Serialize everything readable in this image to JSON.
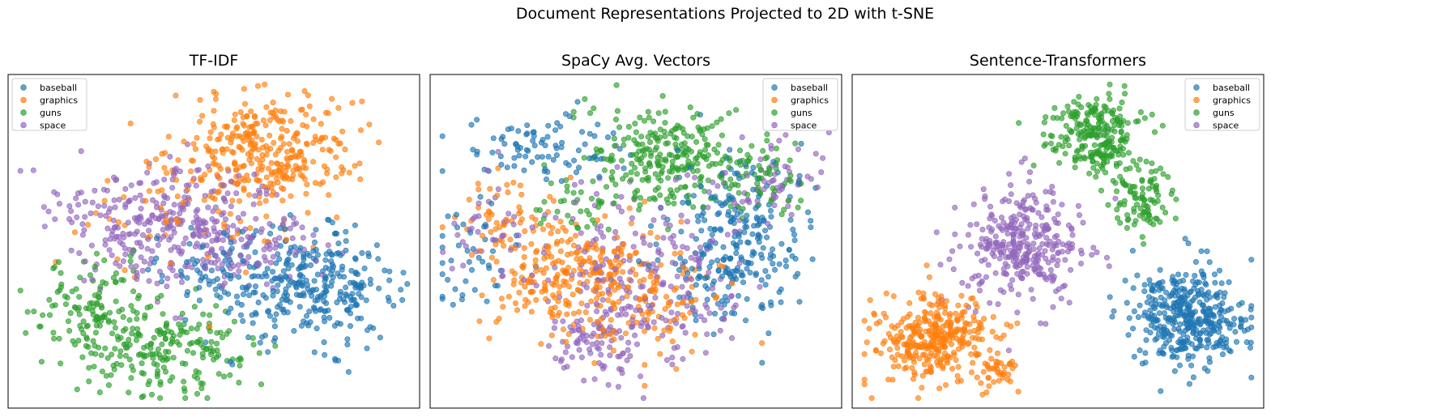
{
  "figure": {
    "suptitle": "Document Representations Projected to 2D with t-SNE"
  },
  "colors": {
    "baseball": "#1f77b4",
    "graphics": "#ff7f0e",
    "guns": "#2ca02c",
    "space": "#9467bd"
  },
  "chart_data": [
    {
      "type": "scatter",
      "title": "TF-IDF",
      "xlabel": "",
      "ylabel": "",
      "axes_ticks": "hidden",
      "grid": false,
      "legend_placement": "top-left",
      "point_alpha": 0.65,
      "series": [
        {
          "name": "baseball",
          "color": "#1f77b4",
          "clusters": [
            {
              "cx": 0.74,
              "cy": 0.36,
              "sx": 0.1,
              "sy": 0.08,
              "n": 300
            },
            {
              "cx": 0.52,
              "cy": 0.42,
              "sx": 0.1,
              "sy": 0.06,
              "n": 70
            }
          ]
        },
        {
          "name": "graphics",
          "color": "#ff7f0e",
          "clusters": [
            {
              "cx": 0.62,
              "cy": 0.77,
              "sx": 0.11,
              "sy": 0.09,
              "n": 330
            },
            {
              "cx": 0.45,
              "cy": 0.58,
              "sx": 0.15,
              "sy": 0.1,
              "n": 50
            }
          ]
        },
        {
          "name": "guns",
          "color": "#2ca02c",
          "clusters": [
            {
              "cx": 0.4,
              "cy": 0.17,
              "sx": 0.1,
              "sy": 0.07,
              "n": 190
            },
            {
              "cx": 0.22,
              "cy": 0.29,
              "sx": 0.08,
              "sy": 0.07,
              "n": 130
            }
          ]
        },
        {
          "name": "space",
          "color": "#9467bd",
          "clusters": [
            {
              "cx": 0.38,
              "cy": 0.56,
              "sx": 0.14,
              "sy": 0.09,
              "n": 300
            },
            {
              "cx": 0.58,
              "cy": 0.48,
              "sx": 0.12,
              "sy": 0.08,
              "n": 90
            }
          ]
        }
      ]
    },
    {
      "type": "scatter",
      "title": "SpaCy Avg. Vectors",
      "xlabel": "",
      "ylabel": "",
      "axes_ticks": "hidden",
      "grid": false,
      "legend_placement": "top-right",
      "point_alpha": 0.65,
      "series": [
        {
          "name": "baseball",
          "color": "#1f77b4",
          "clusters": [
            {
              "cx": 0.74,
              "cy": 0.5,
              "sx": 0.08,
              "sy": 0.12,
              "n": 260
            },
            {
              "cx": 0.27,
              "cy": 0.78,
              "sx": 0.1,
              "sy": 0.06,
              "n": 90
            },
            {
              "cx": 0.1,
              "cy": 0.45,
              "sx": 0.05,
              "sy": 0.08,
              "n": 40
            }
          ]
        },
        {
          "name": "graphics",
          "color": "#ff7f0e",
          "clusters": [
            {
              "cx": 0.35,
              "cy": 0.4,
              "sx": 0.1,
              "sy": 0.09,
              "n": 260
            },
            {
              "cx": 0.55,
              "cy": 0.32,
              "sx": 0.08,
              "sy": 0.09,
              "n": 90
            },
            {
              "cx": 0.18,
              "cy": 0.58,
              "sx": 0.06,
              "sy": 0.06,
              "n": 40
            }
          ]
        },
        {
          "name": "guns",
          "color": "#2ca02c",
          "clusters": [
            {
              "cx": 0.57,
              "cy": 0.74,
              "sx": 0.09,
              "sy": 0.08,
              "n": 260
            },
            {
              "cx": 0.8,
              "cy": 0.69,
              "sx": 0.05,
              "sy": 0.06,
              "n": 60
            },
            {
              "cx": 0.34,
              "cy": 0.6,
              "sx": 0.06,
              "sy": 0.06,
              "n": 30
            }
          ]
        },
        {
          "name": "space",
          "color": "#9467bd",
          "clusters": [
            {
              "cx": 0.52,
              "cy": 0.38,
              "sx": 0.12,
              "sy": 0.14,
              "n": 230
            },
            {
              "cx": 0.4,
              "cy": 0.2,
              "sx": 0.06,
              "sy": 0.06,
              "n": 70
            },
            {
              "cx": 0.82,
              "cy": 0.67,
              "sx": 0.07,
              "sy": 0.06,
              "n": 60
            },
            {
              "cx": 0.15,
              "cy": 0.53,
              "sx": 0.06,
              "sy": 0.07,
              "n": 40
            }
          ]
        }
      ]
    },
    {
      "type": "scatter",
      "title": "Sentence-Transformers",
      "xlabel": "",
      "ylabel": "",
      "axes_ticks": "hidden",
      "grid": false,
      "legend_placement": "top-right",
      "point_alpha": 0.65,
      "series": [
        {
          "name": "baseball",
          "color": "#1f77b4",
          "clusters": [
            {
              "cx": 0.82,
              "cy": 0.27,
              "sx": 0.07,
              "sy": 0.075,
              "n": 400
            }
          ]
        },
        {
          "name": "graphics",
          "color": "#ff7f0e",
          "clusters": [
            {
              "cx": 0.2,
              "cy": 0.21,
              "sx": 0.07,
              "sy": 0.065,
              "n": 340
            },
            {
              "cx": 0.35,
              "cy": 0.1,
              "sx": 0.03,
              "sy": 0.03,
              "n": 40
            }
          ]
        },
        {
          "name": "guns",
          "color": "#2ca02c",
          "clusters": [
            {
              "cx": 0.59,
              "cy": 0.82,
              "sx": 0.055,
              "sy": 0.06,
              "n": 240
            },
            {
              "cx": 0.7,
              "cy": 0.64,
              "sx": 0.04,
              "sy": 0.06,
              "n": 100
            }
          ]
        },
        {
          "name": "space",
          "color": "#9467bd",
          "clusters": [
            {
              "cx": 0.41,
              "cy": 0.49,
              "sx": 0.075,
              "sy": 0.085,
              "n": 330
            }
          ]
        }
      ]
    }
  ]
}
